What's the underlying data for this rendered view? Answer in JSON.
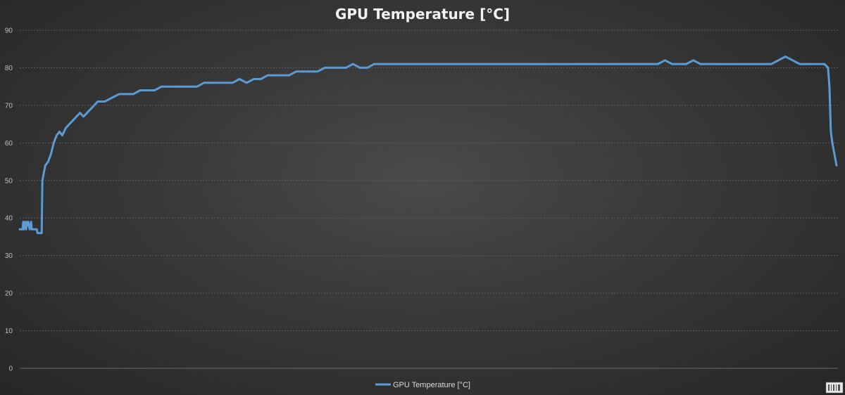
{
  "chart_data": {
    "type": "line",
    "title": "GPU Temperature [°C]",
    "xlabel": "",
    "ylabel": "",
    "ylim": [
      0,
      90
    ],
    "yticks": [
      0,
      10,
      20,
      30,
      40,
      50,
      60,
      70,
      80,
      90
    ],
    "grid": true,
    "legend_position": "bottom",
    "series": [
      {
        "name": "GPU Temperature [°C]",
        "color": "#5b9bd5",
        "x": [
          0,
          4,
          5,
          6,
          7,
          8,
          9,
          10,
          11,
          12,
          13,
          14,
          16,
          17,
          24,
          25,
          30,
          31,
          32,
          34,
          36,
          40,
          44,
          48,
          52,
          56,
          60,
          65,
          70,
          75,
          80,
          85,
          90,
          95,
          100,
          105,
          110,
          120,
          130,
          140,
          150,
          160,
          170,
          180,
          190,
          200,
          210,
          220,
          230,
          240,
          250,
          260,
          270,
          280,
          290,
          300,
          310,
          320,
          330,
          340,
          350,
          360,
          370,
          380,
          390,
          400,
          410,
          420,
          430,
          440,
          450,
          460,
          470,
          480,
          490,
          500,
          510,
          520,
          530,
          540,
          550,
          560,
          570,
          580,
          590,
          600,
          610,
          620,
          630,
          640,
          650,
          660,
          670,
          680,
          690,
          700,
          710,
          720,
          730,
          740,
          750,
          760,
          770,
          780,
          790,
          800,
          810,
          820,
          830,
          840,
          850,
          860,
          870,
          880,
          890,
          900,
          910,
          920,
          930,
          940,
          950,
          960,
          970,
          980,
          990,
          1000,
          1010,
          1020,
          1030,
          1040,
          1050,
          1060,
          1070,
          1080,
          1090,
          1100,
          1110,
          1120,
          1125,
          1130,
          1135,
          1140,
          1142,
          1144,
          1146,
          1148,
          1150,
          1152
        ],
        "values": [
          37,
          37,
          39,
          37,
          39,
          38,
          37,
          39,
          38,
          39,
          38,
          37,
          39,
          37,
          37,
          36,
          36,
          36,
          50,
          52,
          54,
          55,
          57,
          60,
          62,
          63,
          62,
          64,
          65,
          66,
          67,
          68,
          67,
          68,
          69,
          70,
          71,
          71,
          72,
          73,
          73,
          73,
          74,
          74,
          74,
          75,
          75,
          75,
          75,
          75,
          75,
          76,
          76,
          76,
          76,
          76,
          77,
          76,
          77,
          77,
          78,
          78,
          78,
          78,
          79,
          79,
          79,
          79,
          80,
          80,
          80,
          80,
          81,
          80,
          80,
          81,
          81,
          81,
          81,
          81,
          81,
          81,
          81,
          81,
          81,
          81,
          81,
          81,
          81,
          81,
          81,
          81,
          81,
          81,
          81,
          81,
          81,
          81,
          81,
          81,
          81,
          81,
          81,
          81,
          81,
          81,
          81,
          81,
          81,
          81,
          81,
          81,
          81,
          81,
          81,
          81,
          82,
          81,
          81,
          81,
          82,
          81,
          81,
          81,
          81,
          81,
          81,
          81,
          81,
          81,
          81,
          81,
          82,
          83,
          82,
          81,
          81,
          81,
          81,
          81,
          81,
          80,
          75,
          63,
          60,
          58,
          56,
          54
        ]
      }
    ]
  }
}
